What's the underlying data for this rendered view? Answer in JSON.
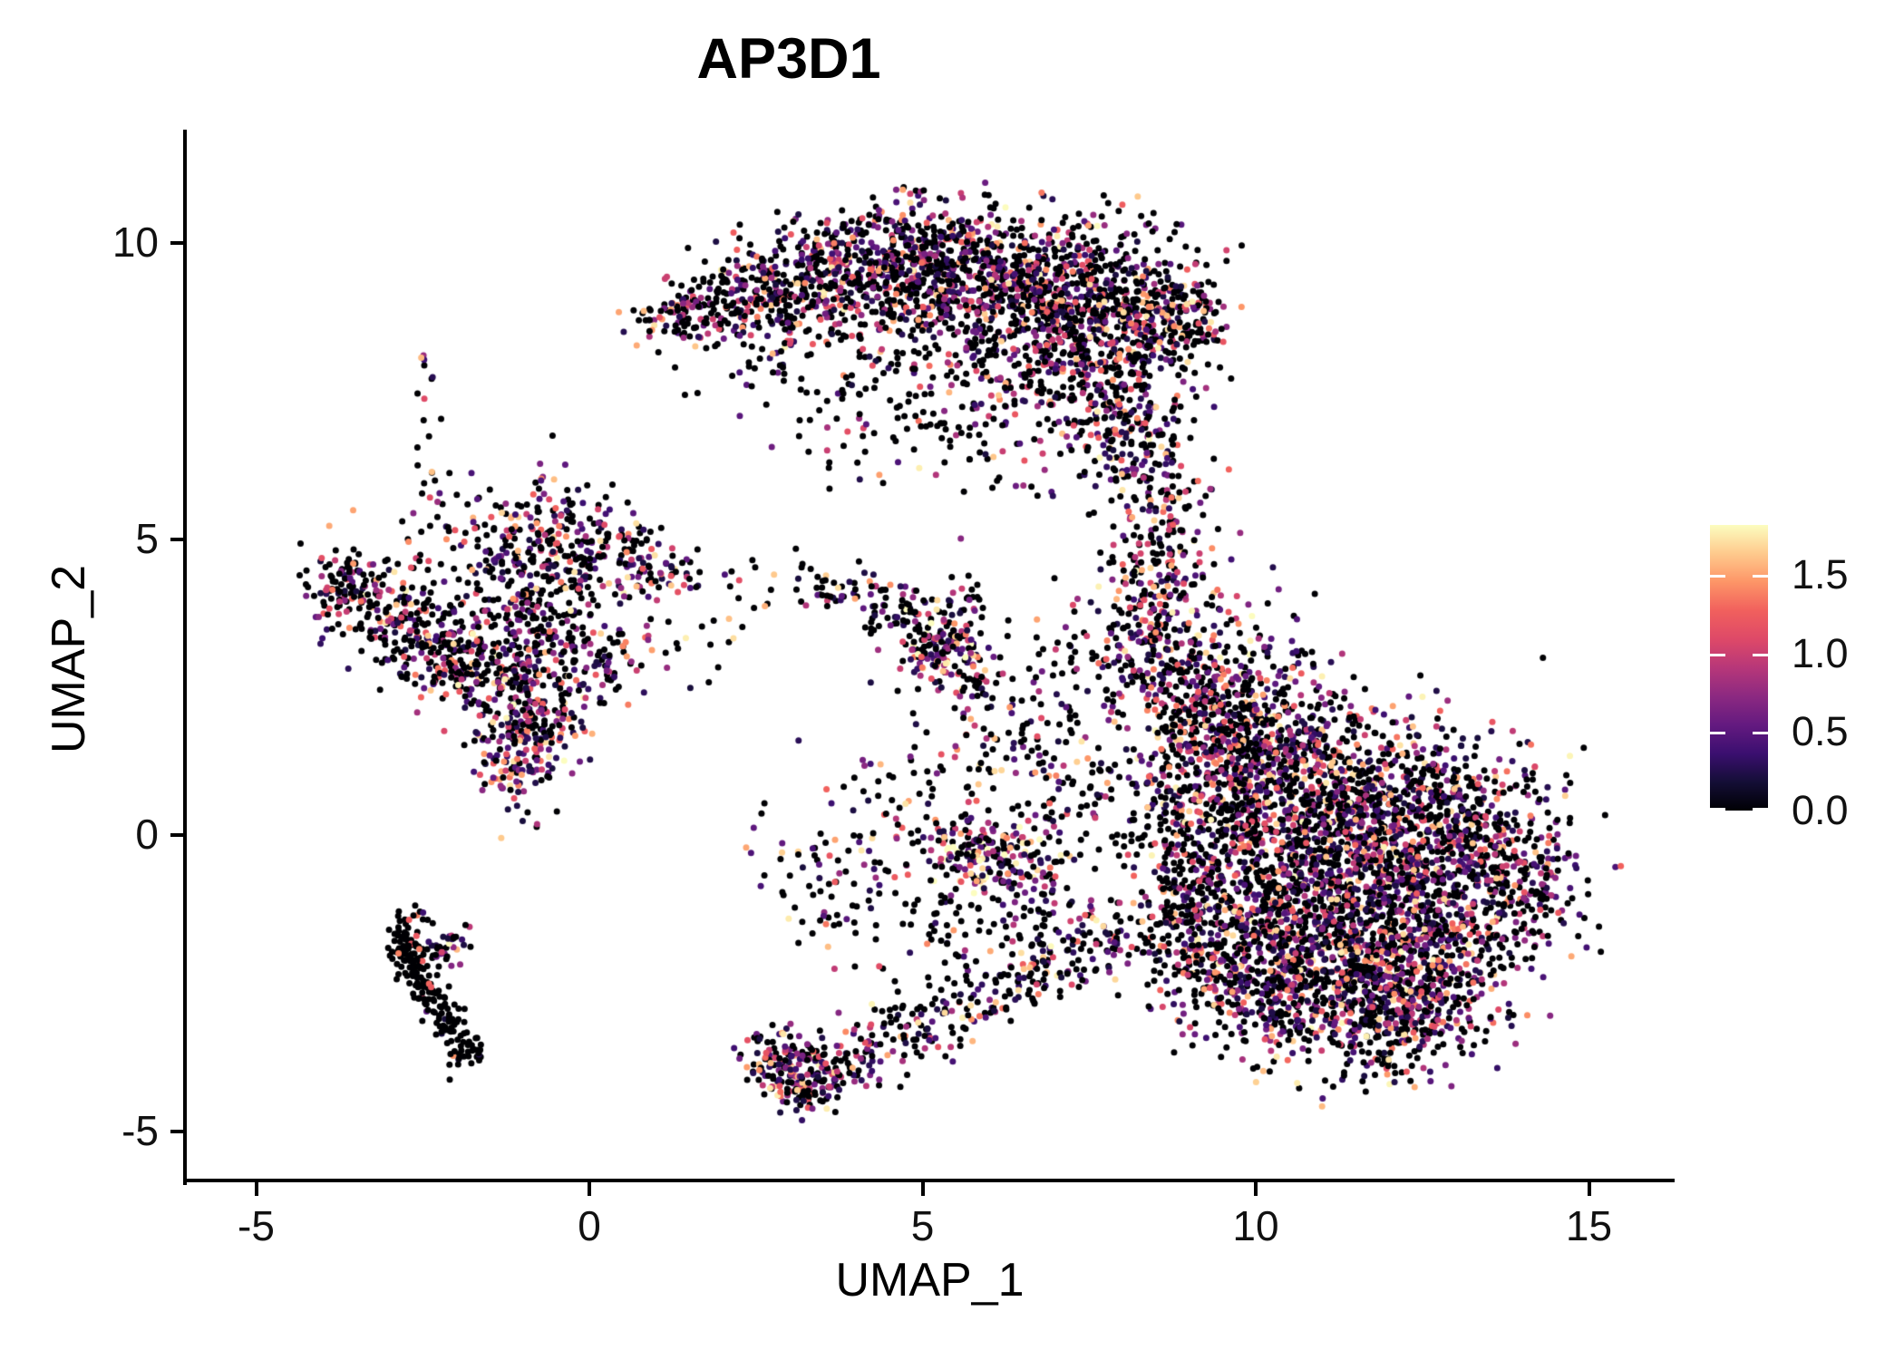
{
  "title": "AP3D1",
  "axes": {
    "x_label": "UMAP_1",
    "y_label": "UMAP_2",
    "x_ticks": [
      {
        "value": -5,
        "label": "-5"
      },
      {
        "value": 0,
        "label": "0"
      },
      {
        "value": 5,
        "label": "5"
      },
      {
        "value": 10,
        "label": "10"
      },
      {
        "value": 15,
        "label": "15"
      }
    ],
    "y_ticks": [
      {
        "value": 10,
        "label": "10"
      },
      {
        "value": 5,
        "label": "5"
      },
      {
        "value": 0,
        "label": "0"
      },
      {
        "value": -5,
        "label": "-5"
      }
    ],
    "x_range": [
      -6.05,
      16.3
    ],
    "y_range": [
      -5.85,
      11.9
    ]
  },
  "colorbar": {
    "max_value": 1.82,
    "min_value": 0,
    "ticks": [
      {
        "value": 1.5,
        "label": "1.5"
      },
      {
        "value": 1.0,
        "label": "1.0"
      },
      {
        "value": 0.5,
        "label": "0.5"
      },
      {
        "value": 0.0,
        "label": "0.0"
      }
    ],
    "colormap_name": "magma",
    "stops": [
      {
        "t": 0.0,
        "c": "#000004"
      },
      {
        "t": 0.1,
        "c": "#140e36"
      },
      {
        "t": 0.2,
        "c": "#3b0f70"
      },
      {
        "t": 0.3,
        "c": "#641a80"
      },
      {
        "t": 0.4,
        "c": "#8c2981"
      },
      {
        "t": 0.5,
        "c": "#b73779"
      },
      {
        "t": 0.6,
        "c": "#de4968"
      },
      {
        "t": 0.7,
        "c": "#f1605d"
      },
      {
        "t": 0.8,
        "c": "#fd9567"
      },
      {
        "t": 0.9,
        "c": "#feca8d"
      },
      {
        "t": 1.0,
        "c": "#fcfdbf"
      }
    ]
  },
  "chart_data": {
    "type": "scatter",
    "title": "AP3D1",
    "xlabel": "UMAP_1",
    "ylabel": "UMAP_2",
    "xlim": [
      -6.05,
      16.3
    ],
    "ylim": [
      -5.85,
      11.9
    ],
    "legend_position": "right",
    "grid": false,
    "point_radius_px": 3.5,
    "zero_color": "#000004",
    "value_min": 0.2,
    "value_span": 1.62,
    "value_skew": 1.7,
    "seed": 1234567,
    "clusters": [
      {
        "name": "top-crescent",
        "lobes": [
          [
            1.2,
            8.75,
            0.3,
            0.22,
            50,
            0.5,
            1
          ],
          [
            1.9,
            8.95,
            0.45,
            0.35,
            110,
            0.5,
            1
          ],
          [
            2.7,
            9.2,
            0.5,
            0.45,
            170,
            0.5,
            1
          ],
          [
            3.6,
            9.45,
            0.55,
            0.5,
            230,
            0.52,
            1
          ],
          [
            4.6,
            9.6,
            0.6,
            0.55,
            300,
            0.52,
            1
          ],
          [
            5.6,
            9.5,
            0.65,
            0.6,
            360,
            0.52,
            1
          ],
          [
            6.6,
            9.2,
            0.7,
            0.65,
            380,
            0.52,
            1
          ],
          [
            7.5,
            8.9,
            0.6,
            0.7,
            300,
            0.52,
            1
          ],
          [
            8.4,
            8.8,
            0.45,
            0.65,
            220,
            0.5,
            1
          ],
          [
            9.1,
            8.8,
            0.28,
            0.45,
            90,
            0.5,
            1
          ],
          [
            7.2,
            7.9,
            0.7,
            0.55,
            200,
            0.5,
            1
          ],
          [
            8.0,
            7.0,
            0.55,
            0.55,
            150,
            0.5,
            1
          ],
          [
            8.4,
            6.0,
            0.45,
            0.55,
            110,
            0.48,
            1
          ],
          [
            8.6,
            5.0,
            0.4,
            0.5,
            80,
            0.45,
            1
          ],
          [
            8.5,
            4.3,
            0.3,
            0.35,
            40,
            0.4,
            1
          ],
          [
            3.8,
            8.1,
            1.1,
            0.6,
            100,
            0.35,
            1
          ],
          [
            5.5,
            7.7,
            0.9,
            0.6,
            80,
            0.35,
            1
          ],
          [
            4.6,
            6.9,
            0.9,
            0.6,
            50,
            0.3,
            1
          ],
          [
            6.3,
            6.6,
            0.6,
            0.5,
            35,
            0.3,
            1
          ]
        ]
      },
      {
        "name": "right-blob",
        "lobes": [
          [
            8.4,
            3.4,
            0.45,
            0.6,
            160,
            0.5,
            1
          ],
          [
            9.2,
            2.6,
            0.6,
            0.7,
            260,
            0.52,
            1
          ],
          [
            10.1,
            1.8,
            0.75,
            0.75,
            330,
            0.52,
            1
          ],
          [
            9.4,
            0.9,
            0.7,
            0.7,
            280,
            0.52,
            1
          ],
          [
            10.6,
            0.6,
            0.9,
            0.8,
            420,
            0.52,
            1
          ],
          [
            11.9,
            0.6,
            0.85,
            0.75,
            400,
            0.52,
            1
          ],
          [
            13.1,
            0.1,
            0.75,
            0.7,
            330,
            0.52,
            1
          ],
          [
            13.9,
            -0.8,
            0.5,
            0.6,
            180,
            0.5,
            1
          ],
          [
            11.0,
            -0.6,
            0.9,
            0.75,
            400,
            0.52,
            1
          ],
          [
            12.3,
            -1.1,
            0.85,
            0.7,
            380,
            0.52,
            1
          ],
          [
            10.0,
            -1.4,
            0.8,
            0.7,
            320,
            0.52,
            1
          ],
          [
            11.4,
            -2.0,
            0.85,
            0.65,
            340,
            0.52,
            1
          ],
          [
            12.7,
            -2.2,
            0.7,
            0.55,
            260,
            0.52,
            1
          ],
          [
            10.4,
            -2.7,
            0.7,
            0.55,
            240,
            0.52,
            1
          ],
          [
            11.7,
            -3.1,
            0.65,
            0.5,
            220,
            0.55,
            1
          ],
          [
            12.4,
            -3.0,
            0.5,
            0.45,
            150,
            0.55,
            1
          ],
          [
            9.3,
            -2.2,
            0.5,
            0.55,
            130,
            0.45,
            1
          ],
          [
            8.9,
            -1.2,
            0.45,
            0.6,
            120,
            0.45,
            1
          ],
          [
            9.0,
            -0.1,
            0.4,
            0.5,
            90,
            0.45,
            1
          ]
        ]
      },
      {
        "name": "left-cluster",
        "lobes": [
          [
            -3.7,
            4.2,
            0.35,
            0.3,
            90,
            0.45,
            1
          ],
          [
            -3.0,
            3.8,
            0.45,
            0.4,
            140,
            0.45,
            1
          ],
          [
            -2.3,
            3.2,
            0.45,
            0.45,
            140,
            0.45,
            1
          ],
          [
            -1.7,
            2.7,
            0.45,
            0.45,
            120,
            0.45,
            1
          ],
          [
            -0.9,
            4.7,
            0.55,
            0.5,
            170,
            0.5,
            1
          ],
          [
            -0.3,
            5.3,
            0.35,
            0.45,
            70,
            0.45,
            1
          ],
          [
            0.5,
            4.7,
            0.45,
            0.35,
            90,
            0.5,
            1
          ],
          [
            1.1,
            4.4,
            0.3,
            0.25,
            40,
            0.45,
            1
          ],
          [
            -0.6,
            3.5,
            0.55,
            0.55,
            150,
            0.5,
            1
          ],
          [
            -0.8,
            2.4,
            0.5,
            0.5,
            120,
            0.5,
            1
          ],
          [
            -1.15,
            1.3,
            0.3,
            0.45,
            130,
            0.75,
            1.1
          ],
          [
            -0.75,
            1.9,
            0.3,
            0.3,
            60,
            0.7,
            1.1
          ],
          [
            0.1,
            3.0,
            0.45,
            0.35,
            70,
            0.5,
            1
          ],
          [
            -2.5,
            7.0,
            0.12,
            0.9,
            16,
            0.4,
            1
          ],
          [
            -1.9,
            5.4,
            0.5,
            0.4,
            40,
            0.4,
            1
          ]
        ]
      },
      {
        "name": "bottom-left-line",
        "lobes": [
          [
            -2.75,
            -1.75,
            0.12,
            0.22,
            45,
            0.05,
            1
          ],
          [
            -2.6,
            -2.2,
            0.12,
            0.2,
            40,
            0.05,
            1
          ],
          [
            -2.45,
            -2.6,
            0.12,
            0.2,
            35,
            0.05,
            1
          ],
          [
            -2.25,
            -2.95,
            0.12,
            0.18,
            30,
            0.05,
            1
          ],
          [
            -2.05,
            -3.25,
            0.1,
            0.15,
            25,
            0.05,
            1
          ],
          [
            -1.85,
            -3.65,
            0.15,
            0.15,
            30,
            0.1,
            1
          ],
          [
            -2.35,
            -1.95,
            0.25,
            0.12,
            25,
            0.5,
            1.1
          ],
          [
            -2.0,
            -1.75,
            0.15,
            0.1,
            15,
            0.6,
            1.1
          ],
          [
            -2.55,
            -1.35,
            0.1,
            0.1,
            8,
            0.3,
            1
          ]
        ]
      },
      {
        "name": "center-small-cluster",
        "lobes": [
          [
            5.15,
            3.2,
            0.3,
            0.3,
            110,
            0.65,
            1.1
          ],
          [
            4.6,
            3.7,
            0.35,
            0.25,
            50,
            0.4,
            1
          ],
          [
            4.0,
            4.1,
            0.3,
            0.2,
            30,
            0.35,
            1
          ],
          [
            3.45,
            4.15,
            0.2,
            0.15,
            15,
            0.4,
            1
          ],
          [
            5.6,
            4.0,
            0.2,
            0.25,
            25,
            0.45,
            1
          ],
          [
            5.8,
            2.6,
            0.3,
            0.3,
            35,
            0.5,
            1
          ],
          [
            5.5,
            3.3,
            0.25,
            0.2,
            30,
            0.6,
            1
          ]
        ]
      },
      {
        "name": "bottom-center-tail",
        "lobes": [
          [
            2.95,
            -3.9,
            0.3,
            0.3,
            130,
            0.55,
            1
          ],
          [
            3.35,
            -4.25,
            0.3,
            0.2,
            70,
            0.5,
            1
          ],
          [
            3.9,
            -3.8,
            0.4,
            0.25,
            60,
            0.5,
            1
          ],
          [
            4.7,
            -3.4,
            0.45,
            0.28,
            60,
            0.5,
            1
          ],
          [
            5.5,
            -3.0,
            0.45,
            0.28,
            55,
            0.5,
            1
          ],
          [
            6.3,
            -2.55,
            0.45,
            0.28,
            55,
            0.5,
            1
          ],
          [
            7.1,
            -2.1,
            0.45,
            0.3,
            60,
            0.5,
            1
          ],
          [
            7.8,
            -1.6,
            0.4,
            0.3,
            60,
            0.5,
            1
          ]
        ]
      },
      {
        "name": "mid-small-dense",
        "lobes": [
          [
            5.9,
            -0.3,
            0.5,
            0.32,
            170,
            0.68,
            1.25
          ],
          [
            6.6,
            -0.75,
            0.3,
            0.25,
            50,
            0.5,
            1
          ],
          [
            5.3,
            -1.4,
            0.4,
            0.4,
            35,
            0.4,
            1
          ],
          [
            6.6,
            -1.5,
            0.4,
            0.35,
            30,
            0.4,
            1
          ]
        ]
      },
      {
        "name": "sparse-scatter",
        "lobes": [
          [
            6.3,
            1.2,
            0.7,
            1.0,
            90,
            0.4,
            1
          ],
          [
            7.3,
            0.6,
            0.5,
            0.8,
            70,
            0.4,
            1
          ],
          [
            7.0,
            2.6,
            0.6,
            0.8,
            60,
            0.35,
            1
          ],
          [
            5.0,
            0.9,
            0.5,
            0.6,
            40,
            0.35,
            1
          ],
          [
            4.4,
            -0.3,
            0.5,
            0.7,
            40,
            0.35,
            1
          ],
          [
            3.9,
            -1.6,
            0.5,
            0.7,
            35,
            0.3,
            1
          ],
          [
            3.3,
            -0.4,
            0.45,
            0.7,
            35,
            0.35,
            1
          ],
          [
            2.0,
            3.6,
            0.5,
            0.5,
            20,
            0.3,
            1
          ],
          [
            2.9,
            4.4,
            0.3,
            0.3,
            12,
            0.3,
            1
          ]
        ]
      }
    ]
  }
}
